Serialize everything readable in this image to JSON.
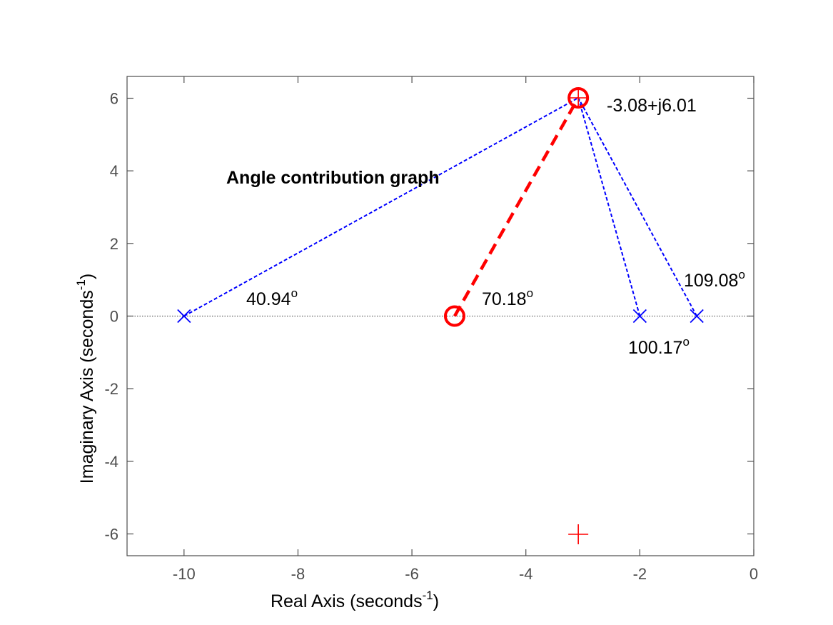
{
  "chart_data": {
    "type": "scatter",
    "xlabel": "Real Axis (seconds",
    "xlabel_sup": "-1",
    "xlabel_end": ")",
    "ylabel": "Imaginary Axis (seconds",
    "ylabel_sup": "-1",
    "ylabel_end": ")",
    "xlim": [
      -11,
      0
    ],
    "ylim": [
      -6.6,
      6.6
    ],
    "xticks": [
      -10,
      -8,
      -6,
      -4,
      -2,
      0
    ],
    "yticks": [
      -6,
      -4,
      -2,
      0,
      2,
      4,
      6
    ],
    "xtick_labels": [
      "-10",
      "-8",
      "-6",
      "-4",
      "-2",
      "0"
    ],
    "ytick_labels": [
      "-6",
      "-4",
      "-2",
      "0",
      "2",
      "4",
      "6"
    ],
    "grid": false,
    "poles": [
      [
        -10,
        0
      ],
      [
        -2,
        0
      ],
      [
        -1,
        0
      ]
    ],
    "zeros": [
      [
        -5.25,
        0
      ]
    ],
    "test_point": [
      -3.08,
      6.01
    ],
    "conjugate_point": [
      -3.08,
      -6.01
    ],
    "annotations": {
      "title": "Angle contribution graph",
      "point_label": "-3.08+j6.01",
      "angles": [
        {
          "text": "40.94",
          "sup": "o"
        },
        {
          "text": "70.18",
          "sup": "o"
        },
        {
          "text": "100.17",
          "sup": "o"
        },
        {
          "text": "109.08",
          "sup": "o"
        }
      ]
    },
    "colors": {
      "pole": "#0000ff",
      "zero": "#ff0000",
      "vector_pole": "#0000ff",
      "vector_zero": "#ff0000",
      "axis": "#4d4d4d",
      "real_axis_line": "#333333"
    }
  }
}
